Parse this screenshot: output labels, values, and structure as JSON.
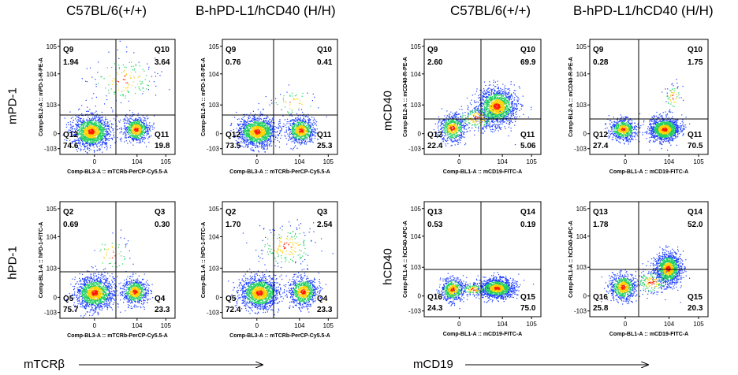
{
  "column_titles": [
    "C57BL/6(+/+)",
    "B-hPD-L1/hCD40 (H/H)",
    "C57BL/6(+/+)",
    "B-hPD-L1/hCD40 (H/H)"
  ],
  "row_labels": {
    "top_left": "mPD-1",
    "bottom_left": "hPD-1",
    "top_right": "mCD40",
    "bottom_right": "hCD40"
  },
  "footer": {
    "left": "mTCRβ",
    "right": "mCD19"
  },
  "colors": {
    "hot": "#ff1a00",
    "warm": "#ffd000",
    "mid": "#20d060",
    "cool": "#1a3cff",
    "gate": "#000000"
  },
  "chart_data": [
    {
      "type": "scatter",
      "panel": "mPD1-wt",
      "x_axis_label": "Comp-BL3-A :: mTCRb-PerCP-Cy5.5-A",
      "y_axis_label": "Comp-BL2-A :: mPD-1-R-PE-A",
      "x_ticks": [
        "0",
        "10^4",
        "10^5"
      ],
      "y_ticks": [
        "10^5",
        "10^4",
        "10^3",
        "0",
        "-10^3"
      ],
      "quadrants": [
        {
          "name": "Q9",
          "percent": "1.94",
          "pos": "top-left"
        },
        {
          "name": "Q10",
          "percent": "3.64",
          "pos": "top-right"
        },
        {
          "name": "Q12",
          "percent": "74.6",
          "pos": "bottom-left"
        },
        {
          "name": "Q11",
          "percent": "19.8",
          "pos": "bottom-right"
        }
      ]
    },
    {
      "type": "scatter",
      "panel": "mPD1-hh",
      "x_axis_label": "Comp-BL3-A :: mTCRb-PerCP-Cy5.5-A",
      "y_axis_label": "Comp-BL2-A :: mPD-1-R-PE-A",
      "x_ticks": [
        "0",
        "10^4",
        "10^5"
      ],
      "y_ticks": [
        "10^5",
        "10^4",
        "10^3",
        "0",
        "-10^3"
      ],
      "quadrants": [
        {
          "name": "Q9",
          "percent": "0.76",
          "pos": "top-left"
        },
        {
          "name": "Q10",
          "percent": "0.41",
          "pos": "top-right"
        },
        {
          "name": "Q12",
          "percent": "73.5",
          "pos": "bottom-left"
        },
        {
          "name": "Q11",
          "percent": "25.3",
          "pos": "bottom-right"
        }
      ]
    },
    {
      "type": "scatter",
      "panel": "mCD40-wt",
      "x_axis_label": "Comp-BL1-A :: mCD19-FITC-A",
      "y_axis_label": "Comp-BL2-A :: mCD40-R-PE-A",
      "x_ticks": [
        "0",
        "10^4",
        "10^5"
      ],
      "y_ticks": [
        "10^5",
        "10^4",
        "10^3",
        "0",
        "-10^3"
      ],
      "quadrants": [
        {
          "name": "Q9",
          "percent": "2.60",
          "pos": "top-left"
        },
        {
          "name": "Q10",
          "percent": "69.9",
          "pos": "top-right"
        },
        {
          "name": "Q12",
          "percent": "22.4",
          "pos": "bottom-left"
        },
        {
          "name": "Q11",
          "percent": "5.06",
          "pos": "bottom-right"
        }
      ]
    },
    {
      "type": "scatter",
      "panel": "mCD40-hh",
      "x_axis_label": "Comp-BL1-A :: mCD19-FITC-A",
      "y_axis_label": "Comp-BL2-A :: mCD40-R-PE-A",
      "x_ticks": [
        "0",
        "10^4",
        "10^5"
      ],
      "y_ticks": [
        "10^5",
        "10^4",
        "10^3",
        "0",
        "-10^3"
      ],
      "quadrants": [
        {
          "name": "Q9",
          "percent": "0.28",
          "pos": "top-left"
        },
        {
          "name": "Q10",
          "percent": "1.75",
          "pos": "top-right"
        },
        {
          "name": "Q12",
          "percent": "27.4",
          "pos": "bottom-left"
        },
        {
          "name": "Q11",
          "percent": "70.5",
          "pos": "bottom-right"
        }
      ]
    },
    {
      "type": "scatter",
      "panel": "hPD1-wt",
      "x_axis_label": "Comp-BL3-A :: mTCRb-PerCP-Cy5.5-A",
      "y_axis_label": "Comp-BL1-A :: hPD-1-FITC-A",
      "x_ticks": [
        "0",
        "10^4",
        "10^5"
      ],
      "y_ticks": [
        "10^5",
        "10^4",
        "10^3",
        "0",
        "-10^3"
      ],
      "quadrants": [
        {
          "name": "Q2",
          "percent": "0.69",
          "pos": "top-left"
        },
        {
          "name": "Q3",
          "percent": "0.30",
          "pos": "top-right"
        },
        {
          "name": "Q5",
          "percent": "75.7",
          "pos": "bottom-left"
        },
        {
          "name": "Q4",
          "percent": "23.3",
          "pos": "bottom-right"
        }
      ]
    },
    {
      "type": "scatter",
      "panel": "hPD1-hh",
      "x_axis_label": "Comp-BL3-A :: mTCRb-PerCP-Cy5.5-A",
      "y_axis_label": "Comp-BL1-A :: hPD-1-FITC-A",
      "x_ticks": [
        "0",
        "10^4",
        "10^5"
      ],
      "y_ticks": [
        "10^5",
        "10^4",
        "10^3",
        "0",
        "-10^3"
      ],
      "quadrants": [
        {
          "name": "Q2",
          "percent": "1.70",
          "pos": "top-left"
        },
        {
          "name": "Q3",
          "percent": "2.54",
          "pos": "top-right"
        },
        {
          "name": "Q5",
          "percent": "72.4",
          "pos": "bottom-left"
        },
        {
          "name": "Q4",
          "percent": "23.3",
          "pos": "bottom-right"
        }
      ]
    },
    {
      "type": "scatter",
      "panel": "hCD40-wt",
      "x_axis_label": "Comp-BL1-A :: mCD19-FITC-A",
      "y_axis_label": "Comp-RL1-A :: hCD40-APC-A",
      "x_ticks": [
        "0",
        "10^4",
        "10^5"
      ],
      "y_ticks": [
        "10^5",
        "10^4",
        "10^3",
        "0",
        "-10^3"
      ],
      "quadrants": [
        {
          "name": "Q13",
          "percent": "0.53",
          "pos": "top-left"
        },
        {
          "name": "Q14",
          "percent": "0.19",
          "pos": "top-right"
        },
        {
          "name": "Q16",
          "percent": "24.3",
          "pos": "bottom-left"
        },
        {
          "name": "Q15",
          "percent": "75.0",
          "pos": "bottom-right"
        }
      ]
    },
    {
      "type": "scatter",
      "panel": "hCD40-hh",
      "x_axis_label": "Comp-BL1-A :: mCD19-FITC-A",
      "y_axis_label": "Comp-RL1-A :: hCD40-APC-A",
      "x_ticks": [
        "0",
        "10^4",
        "10^5"
      ],
      "y_ticks": [
        "10^5",
        "10^4",
        "10^3",
        "0",
        "-10^3"
      ],
      "quadrants": [
        {
          "name": "Q13",
          "percent": "1.78",
          "pos": "top-left"
        },
        {
          "name": "Q14",
          "percent": "52.0",
          "pos": "top-right"
        },
        {
          "name": "Q16",
          "percent": "25.8",
          "pos": "bottom-left"
        },
        {
          "name": "Q15",
          "percent": "20.3",
          "pos": "bottom-right"
        }
      ]
    }
  ]
}
